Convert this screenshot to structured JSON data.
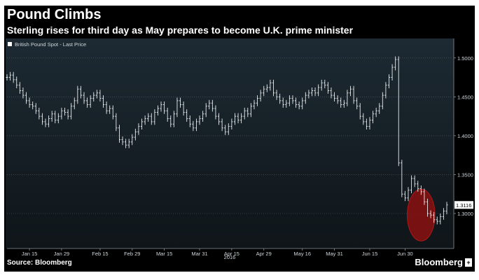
{
  "chart_data": {
    "type": "ohlc",
    "title": "Pound Climbs",
    "subtitle": "Sterling rises for third day as May prepares to become U.K. prime minister",
    "legend": "British Pound Spot - Last Price",
    "legend_position": "top-left",
    "last_price_label": "1.3116",
    "x_axis_year": "2016",
    "ylim": [
      1.255,
      1.525
    ],
    "y_ticks": [
      {
        "value": 1.3,
        "label": "1.3000"
      },
      {
        "value": 1.35,
        "label": "1.3500"
      },
      {
        "value": 1.4,
        "label": "1.4000"
      },
      {
        "value": 1.45,
        "label": "1.4500"
      },
      {
        "value": 1.5,
        "label": "1.5000"
      }
    ],
    "x_ticks": [
      {
        "index": 7,
        "label": "Jan 15"
      },
      {
        "index": 17,
        "label": "Jan 29"
      },
      {
        "index": 29,
        "label": "Feb 15"
      },
      {
        "index": 39,
        "label": "Feb 29"
      },
      {
        "index": 49,
        "label": "Mar 15"
      },
      {
        "index": 60,
        "label": "Mar 31"
      },
      {
        "index": 70,
        "label": "Apr 15"
      },
      {
        "index": 80,
        "label": "Apr 29"
      },
      {
        "index": 92,
        "label": "May 16"
      },
      {
        "index": 102,
        "label": "May 31"
      },
      {
        "index": 113,
        "label": "Jun 15"
      },
      {
        "index": 124,
        "label": "Jun 30"
      }
    ],
    "highlight": {
      "from_index": 126,
      "to_index": 132,
      "color": "#8b1010"
    },
    "series": [
      {
        "name": "British Pound Spot - Last Price",
        "close": [
          1.475,
          1.478,
          1.472,
          1.465,
          1.458,
          1.452,
          1.445,
          1.44,
          1.438,
          1.432,
          1.425,
          1.418,
          1.415,
          1.422,
          1.428,
          1.42,
          1.425,
          1.432,
          1.43,
          1.425,
          1.438,
          1.445,
          1.46,
          1.452,
          1.445,
          1.44,
          1.448,
          1.452,
          1.455,
          1.448,
          1.44,
          1.432,
          1.435,
          1.425,
          1.41,
          1.395,
          1.392,
          1.388,
          1.392,
          1.398,
          1.405,
          1.412,
          1.418,
          1.422,
          1.425,
          1.418,
          1.43,
          1.435,
          1.44,
          1.432,
          1.422,
          1.415,
          1.428,
          1.445,
          1.44,
          1.43,
          1.422,
          1.415,
          1.41,
          1.418,
          1.422,
          1.428,
          1.438,
          1.442,
          1.435,
          1.425,
          1.418,
          1.41,
          1.405,
          1.412,
          1.418,
          1.425,
          1.42,
          1.425,
          1.432,
          1.428,
          1.438,
          1.442,
          1.448,
          1.455,
          1.46,
          1.462,
          1.468,
          1.455,
          1.45,
          1.445,
          1.44,
          1.442,
          1.448,
          1.445,
          1.44,
          1.438,
          1.445,
          1.452,
          1.455,
          1.458,
          1.455,
          1.462,
          1.468,
          1.465,
          1.458,
          1.452,
          1.448,
          1.445,
          1.44,
          1.442,
          1.455,
          1.46,
          1.445,
          1.438,
          1.425,
          1.418,
          1.412,
          1.42,
          1.428,
          1.432,
          1.438,
          1.452,
          1.465,
          1.475,
          1.488,
          1.498,
          1.365,
          1.325,
          1.32,
          1.33,
          1.345,
          1.338,
          1.332,
          1.328,
          1.315,
          1.3,
          1.298,
          1.292,
          1.29,
          1.296,
          1.303,
          1.311
        ]
      }
    ]
  },
  "footer": {
    "source": "Source: Bloomberg",
    "brand": "Bloomberg",
    "brand_icon": "plus-icon"
  }
}
